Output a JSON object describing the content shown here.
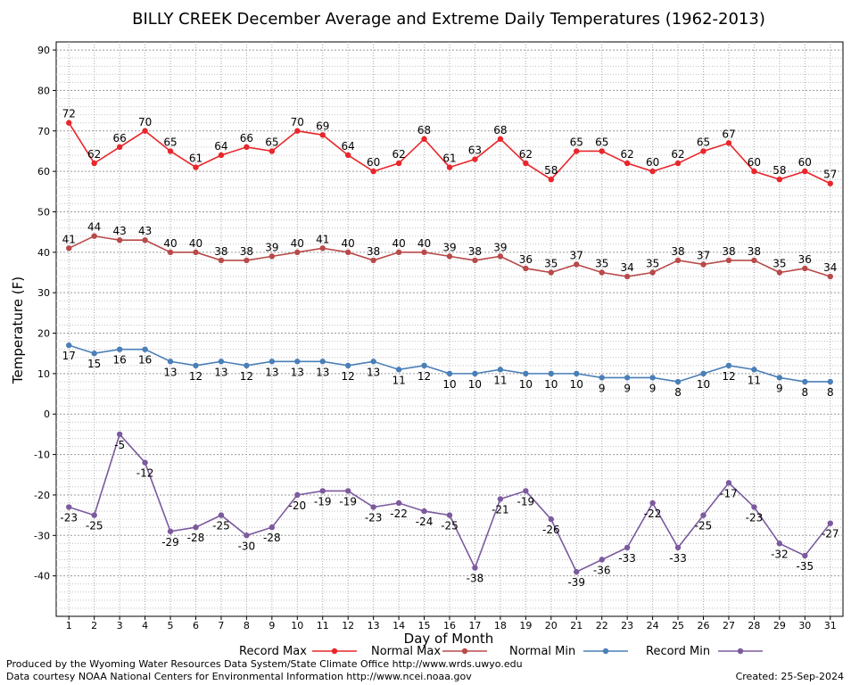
{
  "chart_data": {
    "type": "line",
    "title": "BILLY CREEK December Average and Extreme Daily Temperatures (1962-2013)",
    "xlabel": "Day of Month",
    "ylabel": "Temperature (F)",
    "ylim": [
      -50,
      92
    ],
    "yticks": [
      90,
      80,
      70,
      60,
      50,
      40,
      30,
      20,
      10,
      0,
      -10,
      -20,
      -30,
      -40
    ],
    "x": [
      1,
      2,
      3,
      4,
      5,
      6,
      7,
      8,
      9,
      10,
      11,
      12,
      13,
      14,
      15,
      16,
      17,
      18,
      19,
      20,
      21,
      22,
      23,
      24,
      25,
      26,
      27,
      28,
      29,
      30,
      31
    ],
    "grid": true,
    "legend_position": "bottom",
    "series": [
      {
        "name": "Record Max",
        "color": "#e8262b",
        "values": [
          72,
          62,
          66,
          70,
          65,
          61,
          64,
          66,
          65,
          70,
          69,
          64,
          60,
          62,
          68,
          61,
          63,
          68,
          62,
          58,
          65,
          65,
          62,
          60,
          62,
          65,
          67,
          60,
          58,
          60,
          57
        ]
      },
      {
        "name": "Normal Max",
        "color": "#b84a4a",
        "values": [
          41,
          44,
          43,
          43,
          40,
          40,
          38,
          38,
          39,
          40,
          41,
          40,
          38,
          40,
          40,
          39,
          38,
          39,
          36,
          35,
          37,
          35,
          34,
          35,
          38,
          37,
          38,
          38,
          35,
          36,
          34
        ]
      },
      {
        "name": "Normal Min",
        "color": "#4a7fb8",
        "values": [
          17,
          15,
          16,
          16,
          13,
          12,
          13,
          12,
          13,
          13,
          13,
          12,
          13,
          11,
          12,
          10,
          10,
          11,
          10,
          10,
          10,
          9,
          9,
          9,
          8,
          10,
          12,
          11,
          9,
          8,
          8
        ]
      },
      {
        "name": "Record Min",
        "color": "#7b5a9e",
        "values": [
          -23,
          -25,
          -5,
          -12,
          -29,
          -28,
          -25,
          -30,
          -28,
          -20,
          -19,
          -19,
          -23,
          -22,
          -24,
          -25,
          -38,
          -21,
          -19,
          -26,
          -39,
          -36,
          -33,
          -22,
          -33,
          -25,
          -17,
          -23,
          -32,
          -35,
          -27
        ]
      }
    ]
  },
  "footer": {
    "produced_by": "Produced by the Wyoming Water Resources Data System/State Climate Office http://www.wrds.uwyo.edu",
    "courtesy": "Data courtesy NOAA National Centers for Environmental Information http://www.ncei.noaa.gov",
    "created": "Created:  25-Sep-2024"
  }
}
